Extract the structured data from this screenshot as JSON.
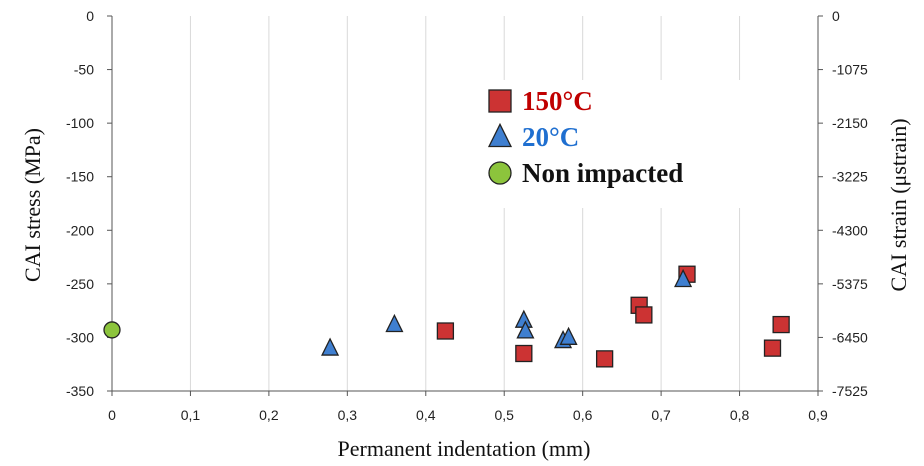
{
  "chart_data": {
    "type": "scatter",
    "xlabel": "Permanent indentation (mm)",
    "ylabel": "CAI stress (MPa)",
    "y2label": "CAI strain (μstrain)",
    "xlim": [
      0,
      0.9
    ],
    "ylim": [
      -350,
      0
    ],
    "y2lim": [
      -7525,
      0
    ],
    "x_ticks": [
      "0",
      "0,1",
      "0,2",
      "0,3",
      "0,4",
      "0,5",
      "0,6",
      "0,7",
      "0,8",
      "0,9"
    ],
    "x_tick_values": [
      0,
      0.1,
      0.2,
      0.3,
      0.4,
      0.5,
      0.6,
      0.7,
      0.8,
      0.9
    ],
    "y_ticks": [
      "0",
      "-50",
      "-100",
      "-150",
      "-200",
      "-250",
      "-300",
      "-350"
    ],
    "y_tick_values": [
      0,
      -50,
      -100,
      -150,
      -200,
      -250,
      -300,
      -350
    ],
    "y2_ticks": [
      "0",
      "-1075",
      "-2150",
      "-3225",
      "-4300",
      "-5375",
      "-6450",
      "-7525"
    ],
    "y2_tick_values": [
      0,
      -1075,
      -2150,
      -3225,
      -4300,
      -5375,
      -6450,
      -7525
    ],
    "grid": "vertical",
    "legend_position": "top-right",
    "series": [
      {
        "name": "150°C",
        "marker": "square",
        "color": "#cc3333",
        "label_color": "#c00000",
        "points": [
          [
            0.425,
            -294
          ],
          [
            0.525,
            -315
          ],
          [
            0.628,
            -320
          ],
          [
            0.672,
            -270
          ],
          [
            0.678,
            -279
          ],
          [
            0.733,
            -241
          ],
          [
            0.842,
            -310
          ],
          [
            0.853,
            -288
          ]
        ]
      },
      {
        "name": "20°C",
        "marker": "triangle",
        "color": "#3f7fd0",
        "label_color": "#1f6fd0",
        "points": [
          [
            0.278,
            -310
          ],
          [
            0.36,
            -288
          ],
          [
            0.525,
            -284
          ],
          [
            0.527,
            -294
          ],
          [
            0.575,
            -303
          ],
          [
            0.582,
            -300
          ],
          [
            0.728,
            -246
          ]
        ]
      },
      {
        "name": "Non impacted",
        "marker": "circle",
        "color": "#8cc43c",
        "label_color": "#111111",
        "points": [
          [
            0,
            -293
          ]
        ]
      }
    ]
  }
}
